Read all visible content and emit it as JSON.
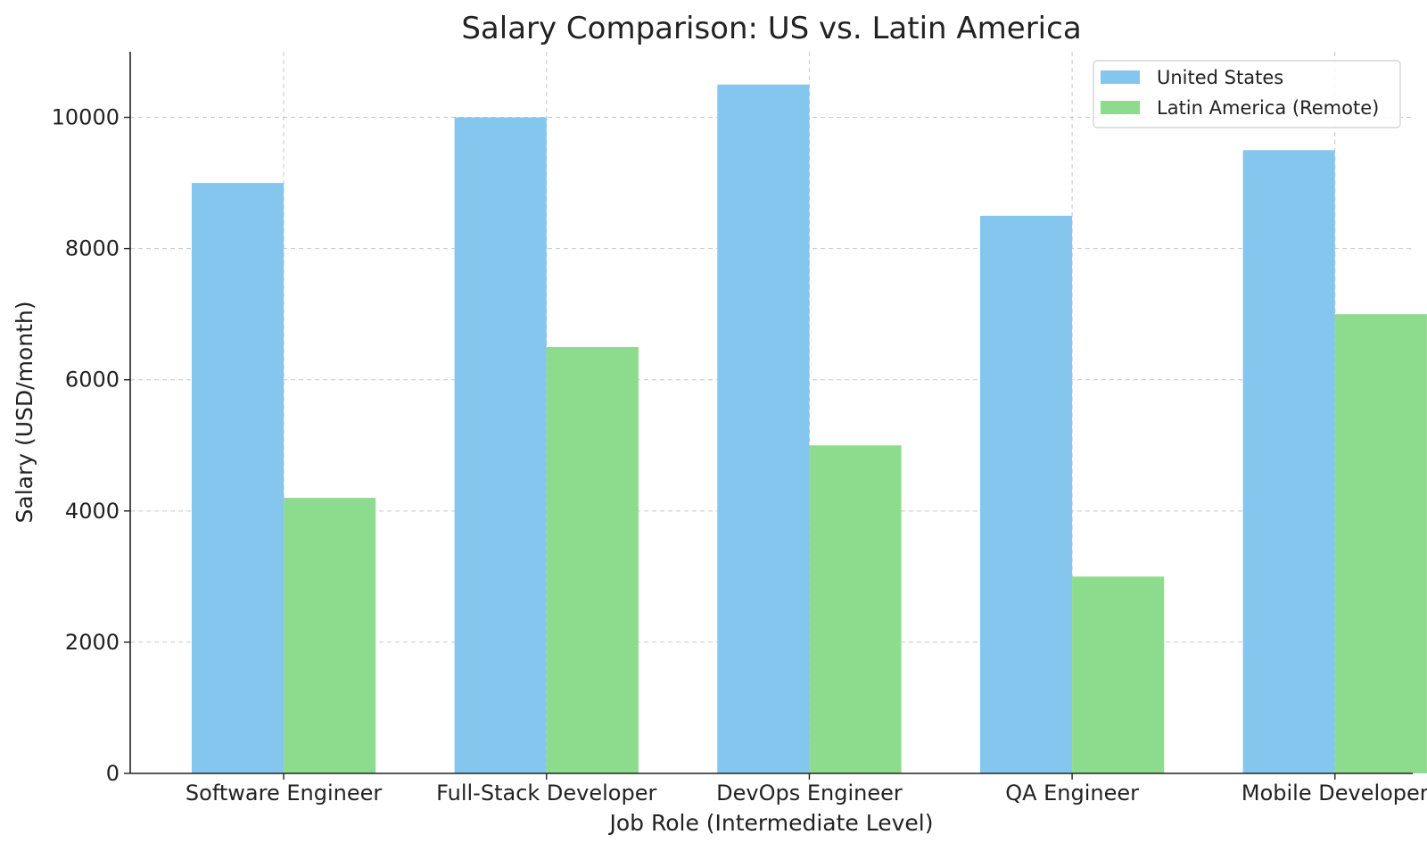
{
  "chart_data": {
    "type": "bar",
    "title": "Salary Comparison: US vs. Latin America",
    "xlabel": "Job Role (Intermediate Level)",
    "ylabel": "Salary (USD/month)",
    "ylim": [
      0,
      11000
    ],
    "yticks": [
      0,
      2000,
      4000,
      6000,
      8000,
      10000
    ],
    "grid": true,
    "legend_position": "top-right",
    "categories": [
      "Software Engineer",
      "Full-Stack Developer",
      "DevOps Engineer",
      "QA Engineer",
      "Mobile Developer"
    ],
    "series": [
      {
        "name": "United States",
        "color": "#85c6ee",
        "values": [
          9000,
          10000,
          10500,
          8500,
          9500
        ]
      },
      {
        "name": "Latin America (Remote)",
        "color": "#8ddc8d",
        "values": [
          4200,
          6500,
          5000,
          3000,
          7000
        ]
      }
    ]
  }
}
